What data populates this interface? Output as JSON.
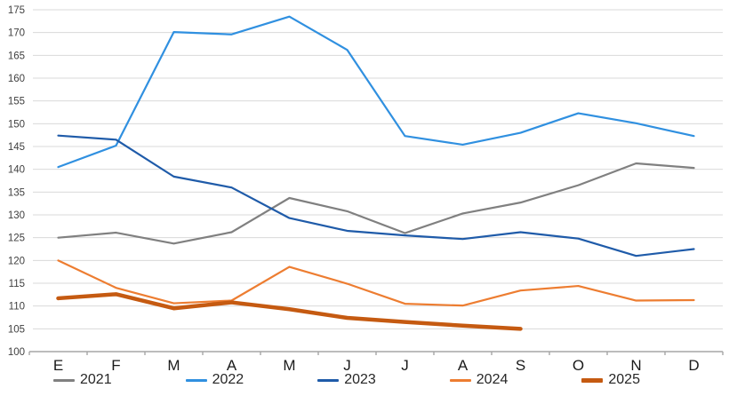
{
  "chart_data": {
    "type": "line",
    "title": "",
    "xlabel": "",
    "ylabel": "",
    "categories": [
      "E",
      "F",
      "M",
      "A",
      "M",
      "J",
      "J",
      "A",
      "S",
      "O",
      "N",
      "D"
    ],
    "series": [
      {
        "name": "2021",
        "color": "#808080",
        "thick": false,
        "values": [
          125.0,
          126.1,
          123.7,
          126.2,
          133.7,
          130.8,
          126.0,
          130.3,
          132.7,
          136.5,
          141.3,
          140.3
        ]
      },
      {
        "name": "2022",
        "color": "#3090E0",
        "thick": false,
        "values": [
          140.5,
          145.2,
          170.1,
          169.6,
          173.5,
          166.2,
          147.3,
          145.4,
          148.0,
          152.3,
          150.1,
          147.3
        ]
      },
      {
        "name": "2023",
        "color": "#1F5BA9",
        "thick": false,
        "values": [
          147.4,
          146.5,
          138.4,
          136.0,
          129.3,
          126.5,
          125.5,
          124.7,
          126.2,
          124.8,
          121.0,
          122.5
        ]
      },
      {
        "name": "2024",
        "color": "#ED7D31",
        "thick": false,
        "values": [
          120.0,
          114.0,
          110.6,
          111.2,
          118.6,
          114.9,
          110.5,
          110.1,
          113.4,
          114.4,
          111.2,
          111.3
        ]
      },
      {
        "name": "2025",
        "color": "#C55A11",
        "thick": true,
        "values": [
          111.7,
          112.6,
          109.5,
          110.8,
          109.3,
          107.4,
          106.5,
          105.7,
          105.0
        ]
      }
    ],
    "ylim": [
      100,
      175
    ],
    "ytick_step": 5,
    "ytick_labels": [
      "100",
      "105",
      "110",
      "115",
      "120",
      "125",
      "130",
      "135",
      "140",
      "145",
      "150",
      "155",
      "160",
      "165",
      "170",
      "175"
    ],
    "grid": "horizontal",
    "grid_color": "#D9D9D9",
    "axis_color": "#A6A6A6",
    "tick_label_color": "#404040",
    "xtick_label_color": "#1a1a1a",
    "legend_position": "bottom"
  }
}
